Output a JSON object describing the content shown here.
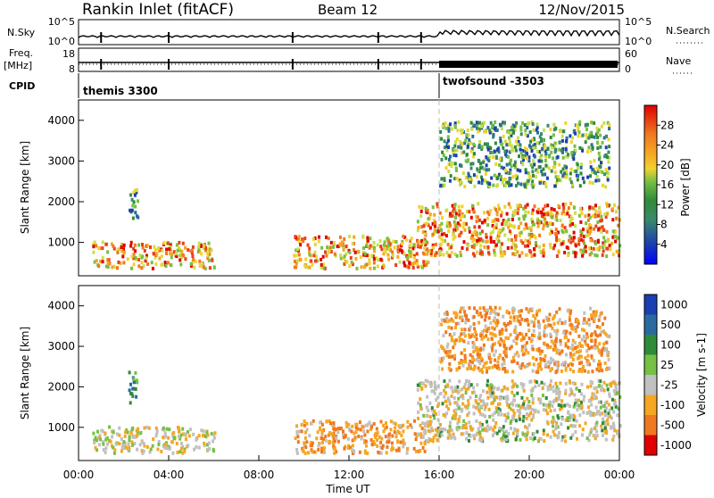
{
  "header": {
    "title": "Rankin Inlet (fitACF)",
    "beam": "Beam 12",
    "date": "12/Nov/2015"
  },
  "strip_panels": {
    "nsky_label": "N.Sky",
    "nsky_ticks": [
      "10^5",
      "10^0"
    ],
    "nsearch_label": "N.Search",
    "nsearch_ticks": [
      "10^5",
      "10^0"
    ],
    "freq_label_1": "Freq.",
    "freq_label_2": "[MHz]",
    "freq_ticks": [
      "18",
      "8"
    ],
    "nave_label": "Nave",
    "nave_ticks": [
      "60",
      "0"
    ],
    "cpid_label": "CPID",
    "cpid_modes": [
      {
        "name": "themis 3300",
        "start_hour": 0
      },
      {
        "name": "twofsound -3503",
        "start_hour": 16
      }
    ]
  },
  "chart_data": [
    {
      "type": "heatmap",
      "name": "power",
      "ylabel": "Slant Range [km]",
      "ylim": [
        180,
        4500
      ],
      "y_ticks": [
        "4000",
        "3000",
        "2000",
        "1000"
      ],
      "xlim_hours": [
        0,
        24
      ],
      "x_ticks": [
        "00:00",
        "04:00",
        "08:00",
        "12:00",
        "16:00",
        "20:00",
        "00:00"
      ],
      "colorbar": {
        "label": "Power [dB]",
        "ticks": [
          "28",
          "24",
          "20",
          "16",
          "12",
          "8",
          "4"
        ],
        "colors": [
          "#0000ff",
          "#1a3fb0",
          "#2a6aa0",
          "#3a8a6a",
          "#2e8b3a",
          "#76c043",
          "#c8e04a",
          "#f2d22e",
          "#f5a623",
          "#f07820",
          "#e8401c",
          "#e00000"
        ]
      },
      "regions": [
        {
          "h": [
            0.6,
            6.0
          ],
          "r": [
            400,
            1050
          ],
          "level": "high"
        },
        {
          "h": [
            2.2,
            2.6
          ],
          "r": [
            1600,
            2400
          ],
          "level": "mid"
        },
        {
          "h": [
            9.5,
            15.5
          ],
          "r": [
            400,
            1200
          ],
          "level": "high"
        },
        {
          "h": [
            15.0,
            24.0
          ],
          "r": [
            700,
            2000
          ],
          "level": "high"
        },
        {
          "h": [
            16.0,
            23.5
          ],
          "r": [
            2400,
            4000
          ],
          "level": "mid"
        }
      ]
    },
    {
      "type": "heatmap",
      "name": "velocity",
      "ylabel": "Slant Range [km]",
      "ylim": [
        180,
        4500
      ],
      "y_ticks": [
        "4000",
        "3000",
        "2000",
        "1000"
      ],
      "xlim_hours": [
        0,
        24
      ],
      "x_ticks": [
        "00:00",
        "04:00",
        "08:00",
        "12:00",
        "16:00",
        "20:00",
        "00:00"
      ],
      "xlabel": "Time UT",
      "colorbar": {
        "label": "Velocity [m s-1]",
        "ticks": [
          "1000",
          "500",
          "100",
          "25",
          "-25",
          "-100",
          "-500",
          "-1000"
        ],
        "colors": [
          "#1a3fb0",
          "#2a6aa0",
          "#2e8b3a",
          "#76c043",
          "#c0c0c0",
          "#f5a623",
          "#f07820",
          "#e00000"
        ]
      },
      "regions": [
        {
          "h": [
            0.6,
            6.0
          ],
          "r": [
            400,
            1050
          ],
          "level": "mixed"
        },
        {
          "h": [
            2.2,
            2.6
          ],
          "r": [
            1600,
            2400
          ],
          "level": "positive"
        },
        {
          "h": [
            9.5,
            15.5
          ],
          "r": [
            400,
            1200
          ],
          "level": "negative"
        },
        {
          "h": [
            15.0,
            24.0
          ],
          "r": [
            700,
            2200
          ],
          "level": "grey-orange"
        },
        {
          "h": [
            16.0,
            23.5
          ],
          "r": [
            2400,
            4000
          ],
          "level": "negative"
        }
      ]
    }
  ]
}
